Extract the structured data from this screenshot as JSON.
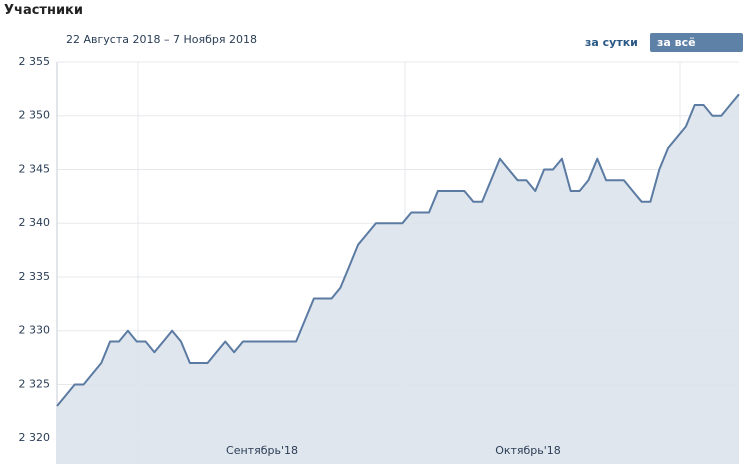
{
  "header": {
    "title": "Участники",
    "date_range": "22 Августа 2018 – 7 Ноября 2018"
  },
  "buttons": [
    "за сутки",
    "за всё время"
  ],
  "chart_data": {
    "type": "area",
    "color": "#5b7ba3",
    "fill": "#dde3ec",
    "values": [
      2323,
      2324,
      2325,
      2325,
      2326,
      2327,
      2329,
      2329,
      2330,
      2329,
      2329,
      2328,
      2329,
      2330,
      2329,
      2327,
      2327,
      2327,
      2328,
      2329,
      2328,
      2329,
      2329,
      2329,
      2329,
      2329,
      2329,
      2329,
      2331,
      2333,
      2333,
      2333,
      2334,
      2336,
      2338,
      2339,
      2340,
      2340,
      2340,
      2340,
      2341,
      2341,
      2341,
      2343,
      2343,
      2343,
      2343,
      2342,
      2342,
      2344,
      2346,
      2345,
      2344,
      2344,
      2343,
      2345,
      2345,
      2346,
      2343,
      2343,
      2344,
      2346,
      2344,
      2344,
      2344,
      2343,
      2342,
      2342,
      2345,
      2347,
      2348,
      2349,
      2351,
      2351,
      2350,
      2350,
      2351,
      2352
    ],
    "ylim": [
      2317.6,
      2355
    ],
    "yticks": [
      {
        "value": 2320,
        "label": "2 320"
      },
      {
        "value": 2325,
        "label": "2 325"
      },
      {
        "value": 2330,
        "label": "2 330"
      },
      {
        "value": 2335,
        "label": "2 335"
      },
      {
        "value": 2340,
        "label": "2 340"
      },
      {
        "value": 2345,
        "label": "2 345"
      },
      {
        "value": 2350,
        "label": "2 350"
      },
      {
        "value": 2355,
        "label": "2 355"
      }
    ],
    "month_labels": [
      "Сентябрь'18",
      "Октябрь'18"
    ],
    "grid": true
  }
}
